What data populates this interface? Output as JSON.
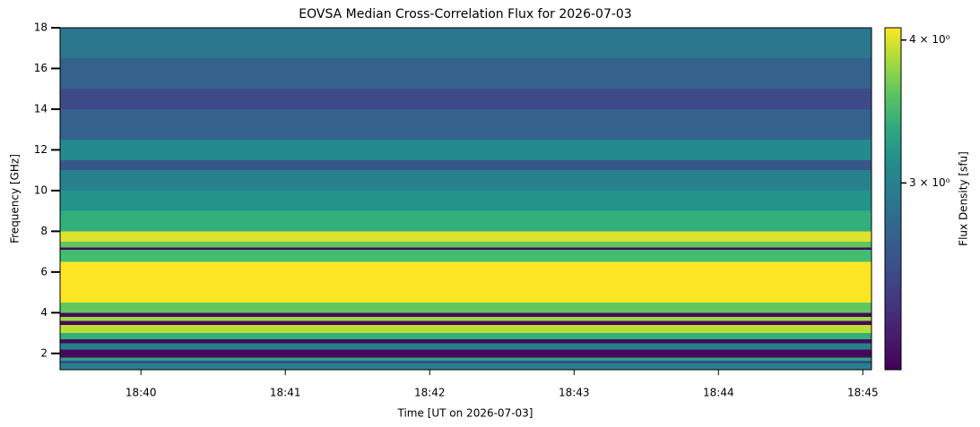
{
  "chart_data": {
    "type": "heatmap",
    "title": "EOVSA Median Cross-Correlation Flux for 2026-07-03",
    "x_label": "Time [UT on 2026-07-03]",
    "y_label": "Frequency [GHz]",
    "colorbar_label": "Flux Density [sfu]",
    "colormap": "viridis",
    "color_scale": "log",
    "clim": [
      2.06,
      4.1
    ],
    "cticks": [
      {
        "value": 3,
        "label": "3 × 10⁰"
      },
      {
        "value": 4,
        "label": "4 × 10⁰"
      }
    ],
    "xlim": [
      39.44,
      45.06
    ],
    "xticks": [
      {
        "value": 40,
        "label": "18:40"
      },
      {
        "value": 41,
        "label": "18:41"
      },
      {
        "value": 42,
        "label": "18:42"
      },
      {
        "value": 43,
        "label": "18:43"
      },
      {
        "value": 44,
        "label": "18:44"
      },
      {
        "value": 45,
        "label": "18:45"
      }
    ],
    "ylim": [
      1.2,
      18
    ],
    "yticks": [
      2,
      4,
      6,
      8,
      10,
      12,
      14,
      16,
      18
    ],
    "y_edges": [
      1.2,
      1.5,
      1.65,
      1.8,
      2.2,
      2.5,
      2.7,
      3.0,
      3.4,
      3.6,
      3.8,
      4.0,
      4.5,
      6.5,
      7.1,
      7.2,
      7.5,
      8.0,
      9.0,
      10.0,
      11.0,
      11.5,
      12.5,
      14.0,
      15.0,
      16.5,
      18.0
    ],
    "values": [
      3.0,
      2.5,
      3.3,
      2.1,
      3.0,
      2.1,
      3.4,
      3.9,
      2.1,
      3.8,
      2.1,
      3.6,
      4.1,
      3.5,
      2.1,
      3.6,
      4.0,
      3.4,
      3.2,
      3.0,
      2.6,
      3.1,
      2.7,
      2.5,
      2.7,
      2.9
    ]
  }
}
